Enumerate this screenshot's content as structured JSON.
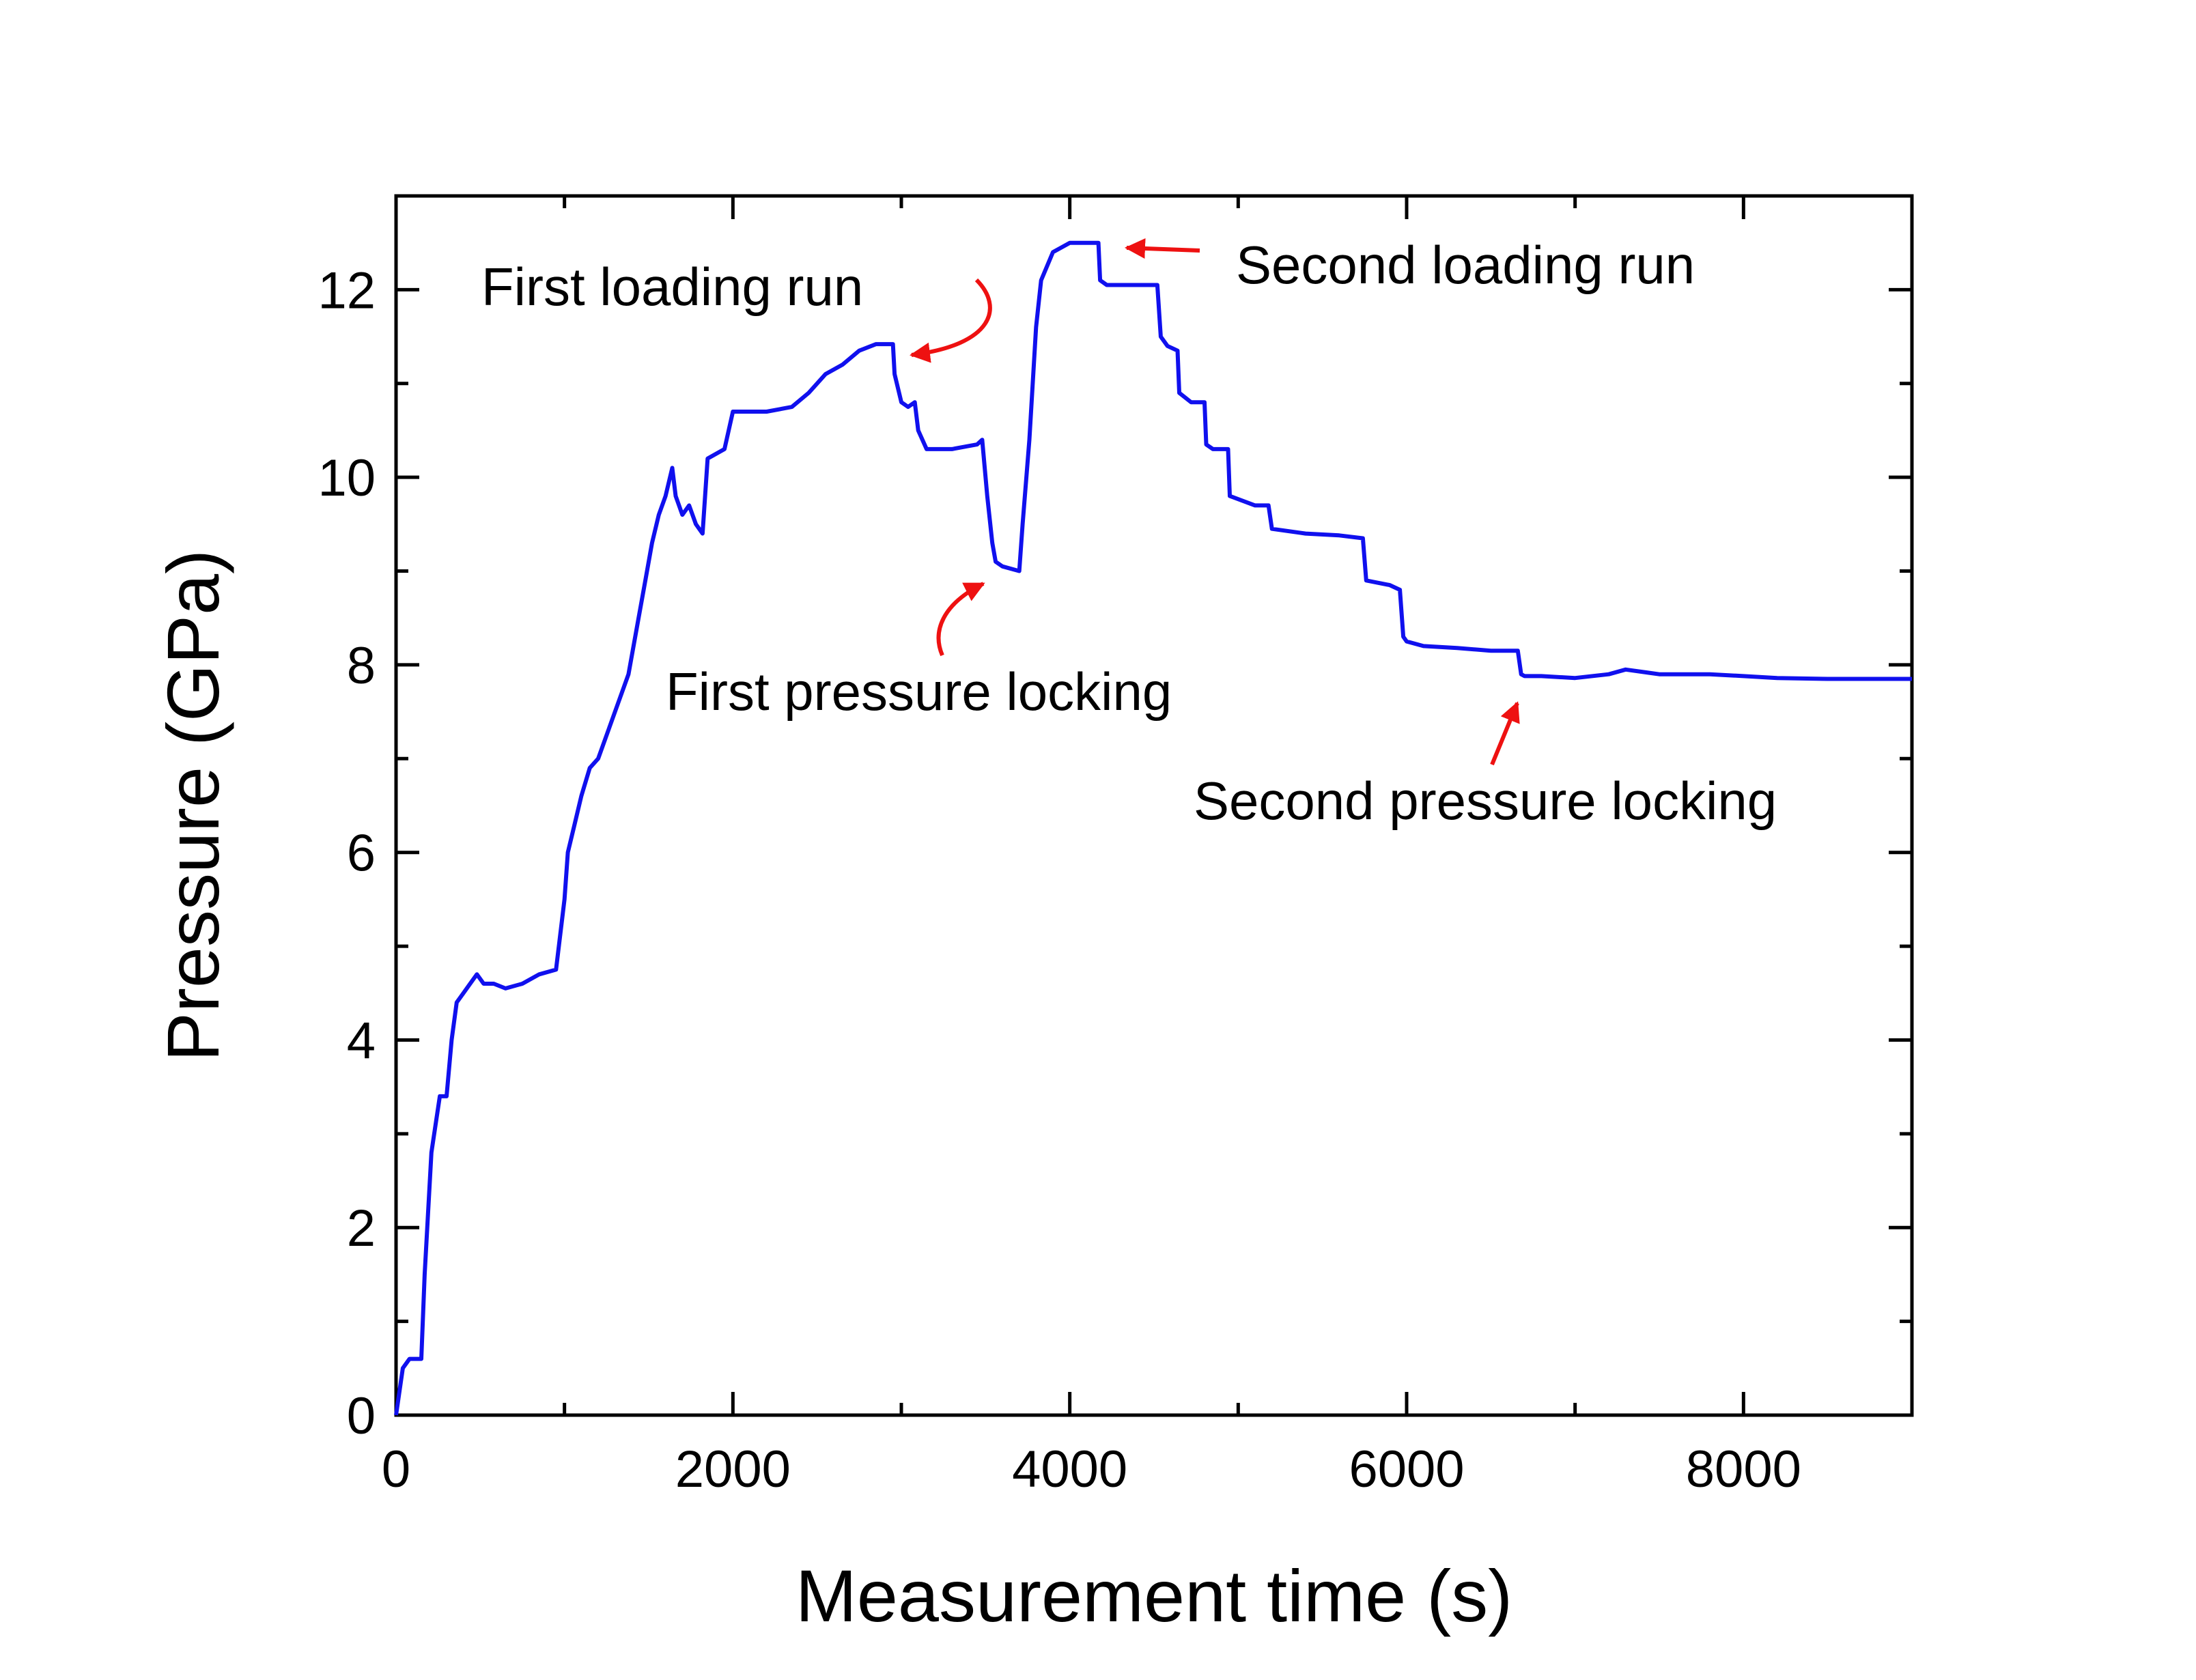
{
  "chart_data": {
    "type": "line",
    "title": "",
    "xlabel": "Measurement time (s)",
    "ylabel": "Pressure (GPa)",
    "xlim": [
      0,
      9000
    ],
    "ylim": [
      0,
      13
    ],
    "xticks": [
      0,
      2000,
      4000,
      6000,
      8000
    ],
    "yticks": [
      0,
      2,
      4,
      6,
      8,
      10,
      12
    ],
    "xtick_labels": [
      "0",
      "2000",
      "4000",
      "6000",
      "8000"
    ],
    "ytick_labels": [
      "0",
      "2",
      "4",
      "6",
      "8",
      "10",
      "12"
    ],
    "grid": false,
    "series": [
      {
        "name": "Pressure",
        "color": "#1010ee",
        "x": [
          0,
          40,
          80,
          150,
          170,
          210,
          260,
          300,
          330,
          360,
          400,
          440,
          480,
          520,
          580,
          650,
          750,
          850,
          950,
          1000,
          1020,
          1060,
          1100,
          1150,
          1200,
          1260,
          1320,
          1380,
          1440,
          1480,
          1520,
          1560,
          1600,
          1640,
          1660,
          1700,
          1740,
          1780,
          1820,
          1850,
          1900,
          1950,
          2000,
          2050,
          2100,
          2200,
          2350,
          2450,
          2550,
          2650,
          2750,
          2850,
          2950,
          2960,
          3000,
          3040,
          3080,
          3100,
          3150,
          3300,
          3450,
          3480,
          3510,
          3540,
          3560,
          3600,
          3700,
          3720,
          3760,
          3800,
          3830,
          3900,
          4000,
          4100,
          4170,
          4180,
          4220,
          4300,
          4400,
          4520,
          4540,
          4580,
          4640,
          4650,
          4720,
          4800,
          4810,
          4850,
          4940,
          4950,
          5100,
          5180,
          5200,
          5400,
          5600,
          5740,
          5760,
          5900,
          5960,
          5980,
          6000,
          6100,
          6300,
          6500,
          6660,
          6680,
          6700,
          6800,
          7000,
          7200,
          7300,
          7500,
          7800,
          8000,
          8200,
          8500,
          8800,
          9000
        ],
        "y": [
          0,
          0.5,
          0.6,
          0.6,
          1.5,
          2.8,
          3.4,
          3.4,
          4.0,
          4.4,
          4.5,
          4.6,
          4.7,
          4.6,
          4.6,
          4.55,
          4.6,
          4.7,
          4.75,
          5.5,
          6.0,
          6.3,
          6.6,
          6.9,
          7.0,
          7.3,
          7.6,
          7.9,
          8.5,
          8.9,
          9.3,
          9.6,
          9.8,
          10.1,
          9.8,
          9.6,
          9.7,
          9.5,
          9.4,
          10.2,
          10.25,
          10.3,
          10.7,
          10.7,
          10.7,
          10.7,
          10.75,
          10.9,
          11.1,
          11.2,
          11.35,
          11.42,
          11.42,
          11.1,
          10.8,
          10.75,
          10.8,
          10.5,
          10.3,
          10.3,
          10.35,
          10.4,
          9.8,
          9.3,
          9.1,
          9.05,
          9.0,
          9.5,
          10.4,
          11.6,
          12.1,
          12.4,
          12.5,
          12.5,
          12.5,
          12.1,
          12.05,
          12.05,
          12.05,
          12.05,
          11.5,
          11.4,
          11.35,
          10.9,
          10.8,
          10.8,
          10.35,
          10.3,
          10.3,
          9.8,
          9.7,
          9.7,
          9.45,
          9.4,
          9.38,
          9.35,
          8.9,
          8.85,
          8.8,
          8.3,
          8.25,
          8.2,
          8.18,
          8.15,
          8.15,
          7.9,
          7.88,
          7.88,
          7.86,
          7.9,
          7.95,
          7.9,
          7.9,
          7.88,
          7.86,
          7.85,
          7.85,
          7.85
        ]
      }
    ],
    "annotations": [
      {
        "text": "First loading run",
        "x": 2050,
        "y": 12.05
      },
      {
        "text": "Second loading run",
        "x": 4950,
        "y": 12.3
      },
      {
        "text": "First pressure locking",
        "x": 1600,
        "y": 7.75
      },
      {
        "text": "Second pressure locking",
        "x": 4700,
        "y": 6.6
      }
    ]
  }
}
